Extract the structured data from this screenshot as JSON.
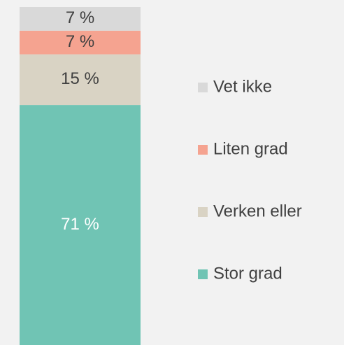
{
  "chart_data": {
    "type": "stacked-bar",
    "categories": [
      null
    ],
    "ylim": [
      0,
      100
    ],
    "series": [
      {
        "name": "Stor grad",
        "color": "#70c4b4",
        "label_color": "#ffffff",
        "values": [
          71
        ],
        "value_labels": [
          "71 %"
        ]
      },
      {
        "name": "Verken eller",
        "color": "#d9d3c4",
        "label_color": "#404040",
        "values": [
          15
        ],
        "value_labels": [
          "15 %"
        ]
      },
      {
        "name": "Liten grad",
        "color": "#f5a390",
        "label_color": "#404040",
        "values": [
          7
        ],
        "value_labels": [
          "7 %"
        ]
      },
      {
        "name": "Vet ikke",
        "color": "#d9d9d9",
        "label_color": "#404040",
        "values": [
          7
        ],
        "value_labels": [
          "7 %"
        ]
      }
    ]
  }
}
